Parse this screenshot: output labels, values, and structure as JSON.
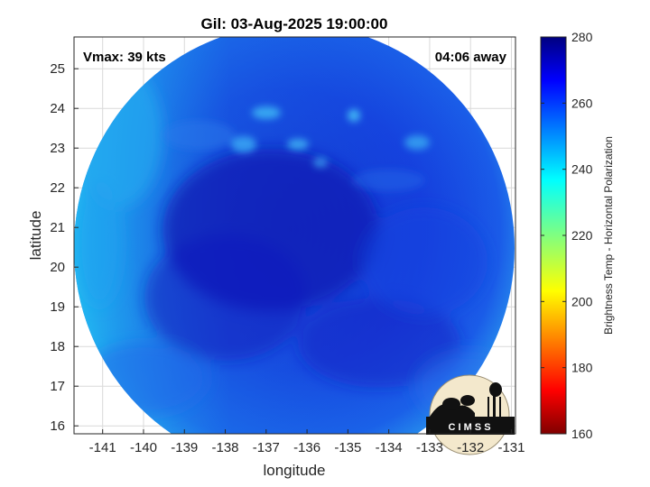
{
  "title": "Gil: 03-Aug-2025 19:00:00",
  "vmax_text": "Vmax: 39 kts",
  "time_text": "04:06 away",
  "xaxis": {
    "label": "longitude",
    "ticks": [
      -141,
      -140,
      -139,
      -138,
      -137,
      -136,
      -135,
      -134,
      -133,
      -132,
      -131
    ],
    "tick_labels": [
      "-141",
      "-140",
      "-139",
      "-138",
      "-137",
      "-136",
      "-135",
      "-134",
      "-133",
      "-132",
      "-131"
    ],
    "range": [
      -141.7,
      -130.9
    ]
  },
  "yaxis": {
    "label": "latitude",
    "ticks": [
      16,
      17,
      18,
      19,
      20,
      21,
      22,
      23,
      24,
      25
    ],
    "tick_labels": [
      "16",
      "17",
      "18",
      "19",
      "20",
      "21",
      "22",
      "23",
      "24",
      "25"
    ],
    "range": [
      15.8,
      25.8
    ]
  },
  "colorbar": {
    "label": "Brightness Temp - Horizontal Polarization",
    "ticks": [
      160,
      180,
      200,
      220,
      240,
      260,
      280
    ],
    "tick_labels": [
      "160",
      "180",
      "200",
      "220",
      "240",
      "260",
      "280"
    ],
    "range": [
      160,
      280
    ],
    "colormap": "jet"
  },
  "logo_text": "C I M S S",
  "colors": {
    "background_swath": "#1538e6",
    "cold_core": "#0c1cc0",
    "warm_edge": "#20b8f0"
  }
}
